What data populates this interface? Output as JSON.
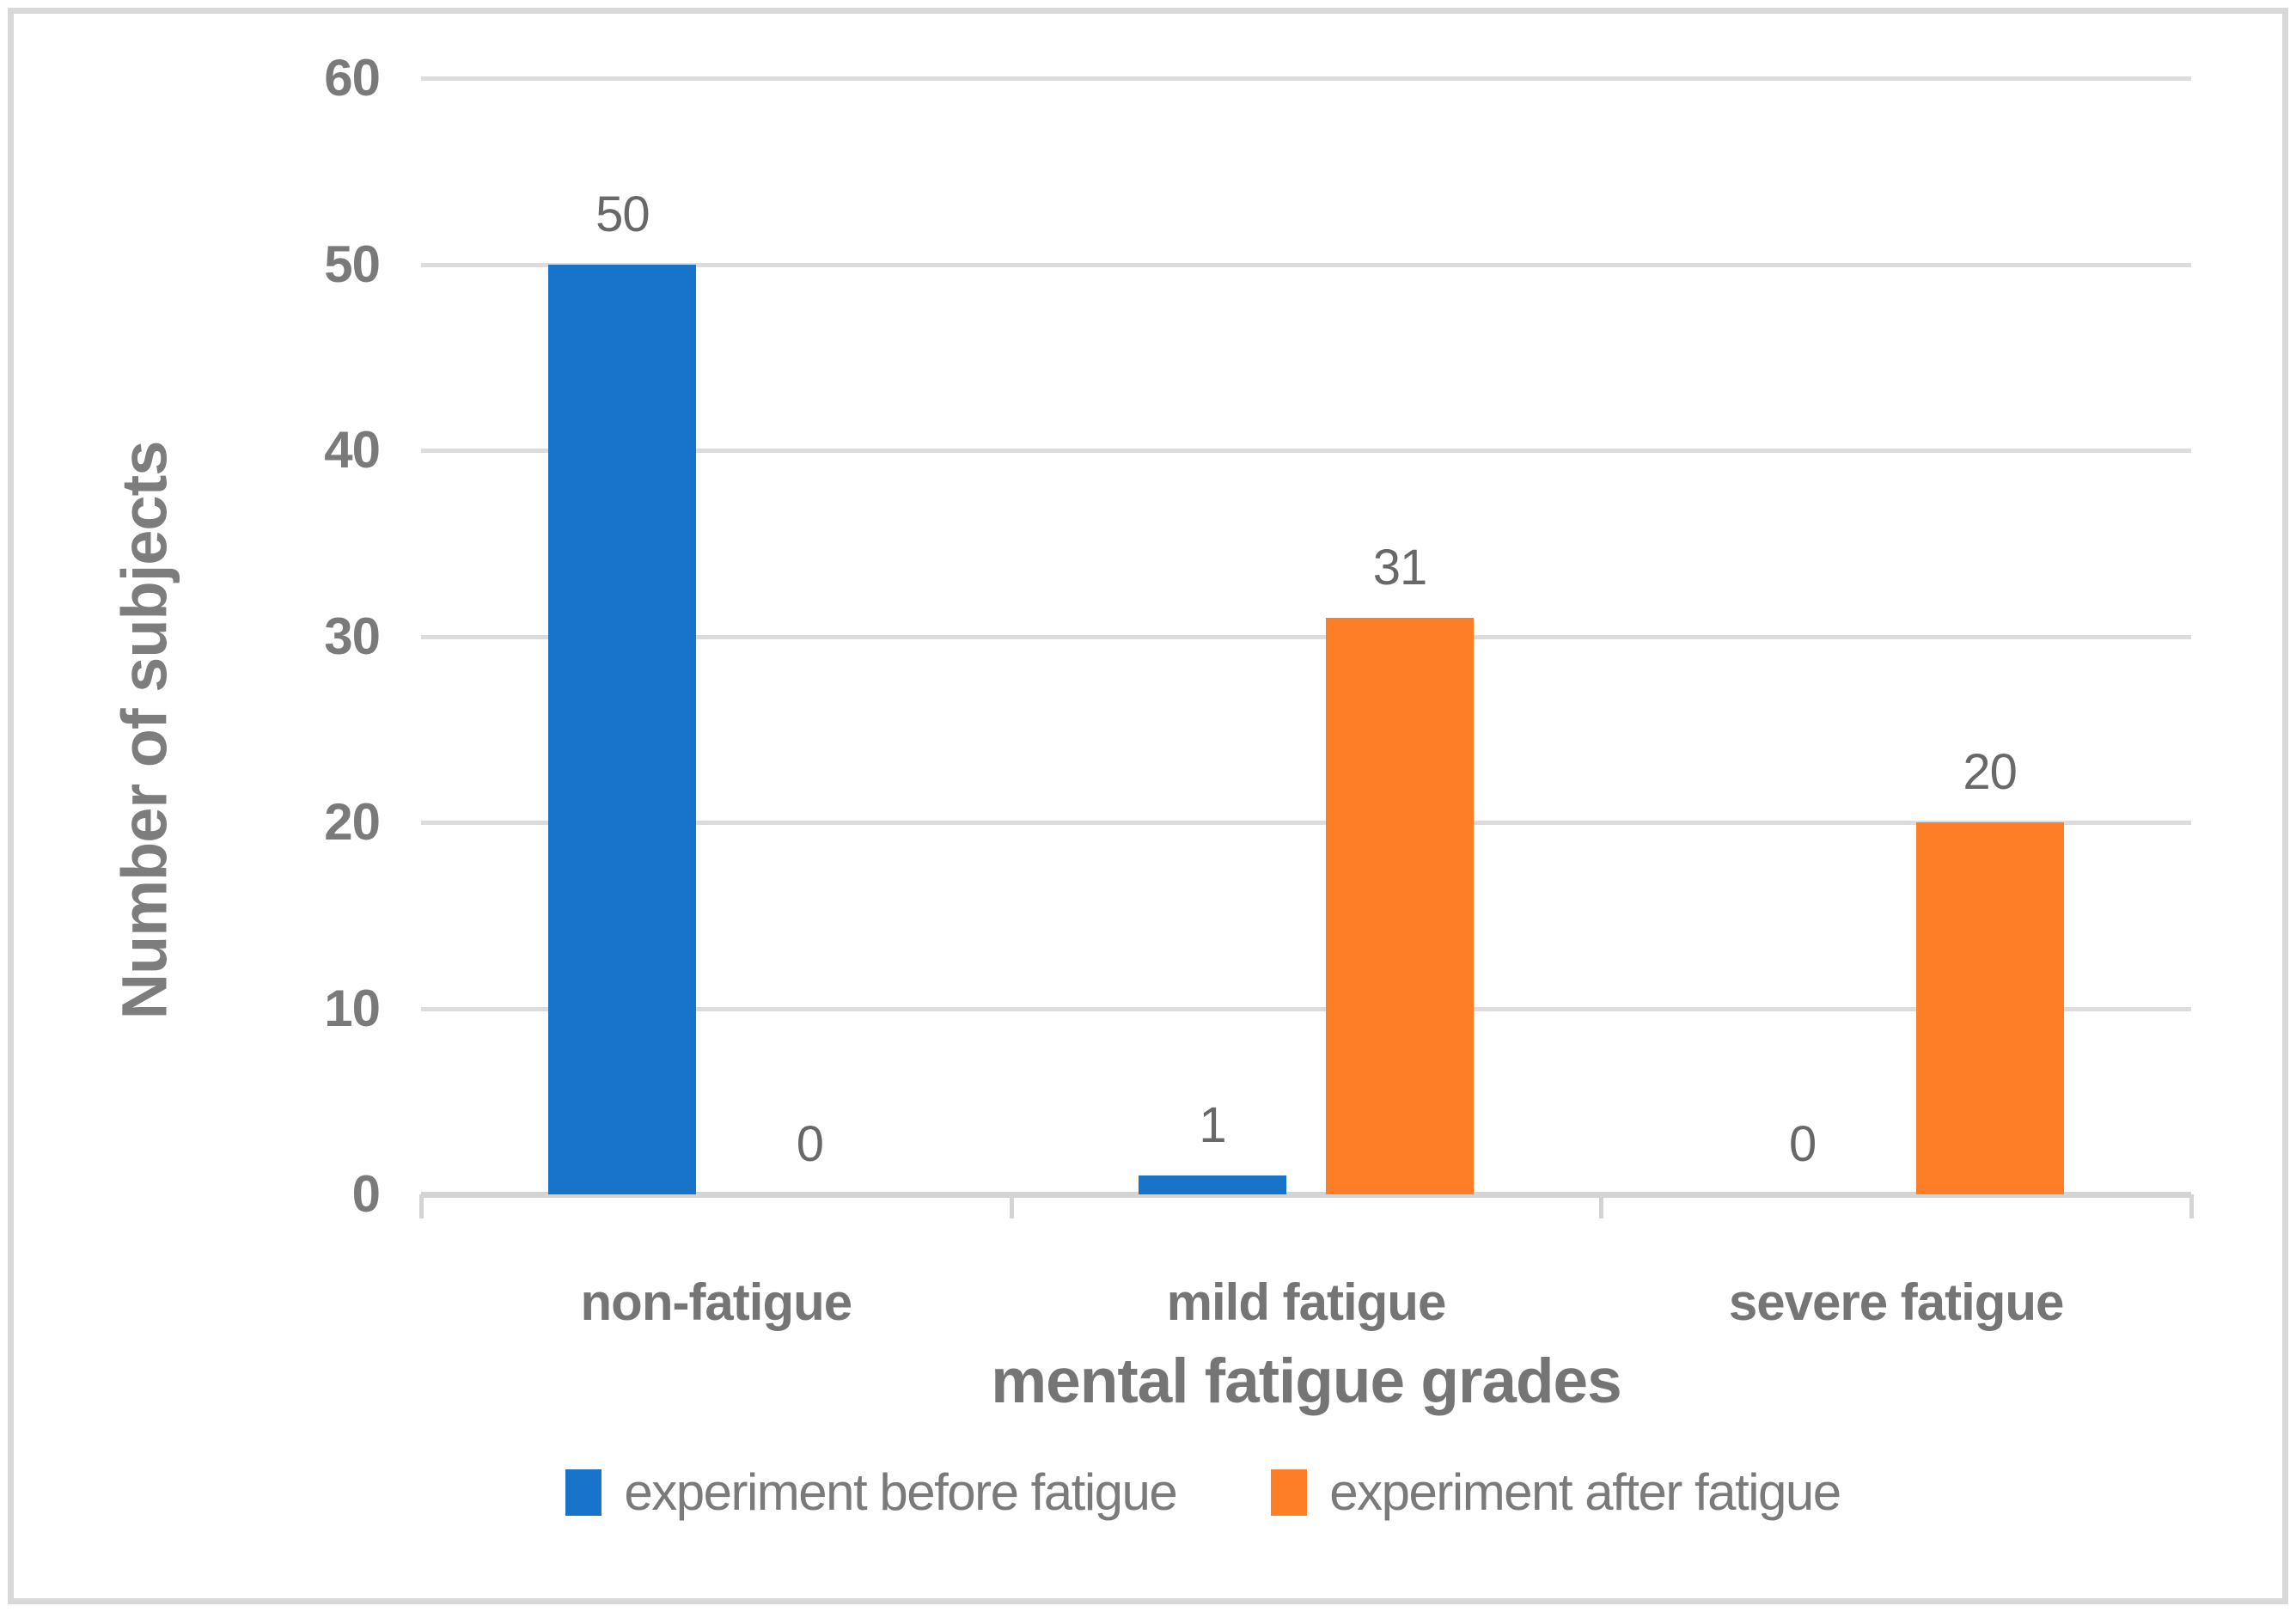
{
  "chart_data": {
    "type": "bar",
    "title": "",
    "categories": [
      "non-fatigue",
      "mild fatigue",
      "severe fatigue"
    ],
    "series": [
      {
        "name": "experiment before fatigue",
        "color": "#1774C9",
        "values": [
          50,
          1,
          0
        ]
      },
      {
        "name": "experiment after fatigue",
        "color": "#FD7E26",
        "values": [
          0,
          31,
          20
        ]
      }
    ],
    "data_labels": [
      [
        "50",
        "1",
        "0"
      ],
      [
        "0",
        "31",
        "20"
      ]
    ],
    "xlabel": "mental fatigue grades",
    "ylabel": "Number of subjects",
    "ylim": [
      0,
      60
    ],
    "ytick_step": 10,
    "yticks": [
      "0",
      "10",
      "20",
      "30",
      "40",
      "50",
      "60"
    ],
    "grid": "horizontal",
    "gridline_color": "#DCDCDC",
    "axis_color": "#D4D4D4",
    "border_color": "#D8D8D8",
    "text_color": "#757575",
    "legend_position": "bottom",
    "show_data_labels": true
  }
}
